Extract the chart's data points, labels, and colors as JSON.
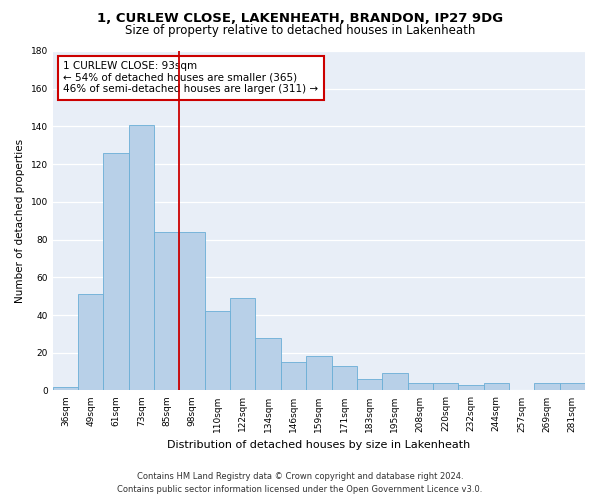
{
  "title1": "1, CURLEW CLOSE, LAKENHEATH, BRANDON, IP27 9DG",
  "title2": "Size of property relative to detached houses in Lakenheath",
  "xlabel": "Distribution of detached houses by size in Lakenheath",
  "ylabel": "Number of detached properties",
  "categories": [
    "36sqm",
    "49sqm",
    "61sqm",
    "73sqm",
    "85sqm",
    "98sqm",
    "110sqm",
    "122sqm",
    "134sqm",
    "146sqm",
    "159sqm",
    "171sqm",
    "183sqm",
    "195sqm",
    "208sqm",
    "220sqm",
    "232sqm",
    "244sqm",
    "257sqm",
    "269sqm",
    "281sqm"
  ],
  "values": [
    2,
    51,
    126,
    141,
    84,
    84,
    42,
    49,
    28,
    15,
    18,
    13,
    6,
    9,
    4,
    4,
    3,
    4,
    0,
    4,
    4
  ],
  "bar_color": "#b8d0e8",
  "bar_edge_color": "#6aaed6",
  "vline_x": 4.5,
  "vline_color": "#cc0000",
  "annotation_text": "1 CURLEW CLOSE: 93sqm\n← 54% of detached houses are smaller (365)\n46% of semi-detached houses are larger (311) →",
  "annotation_box_color": "#ffffff",
  "annotation_box_edge": "#cc0000",
  "ylim": [
    0,
    180
  ],
  "yticks": [
    0,
    20,
    40,
    60,
    80,
    100,
    120,
    140,
    160,
    180
  ],
  "footnote1": "Contains HM Land Registry data © Crown copyright and database right 2024.",
  "footnote2": "Contains public sector information licensed under the Open Government Licence v3.0.",
  "fig_facecolor": "#ffffff",
  "bg_color": "#e8eef7",
  "grid_color": "#ffffff",
  "title_fontsize": 9.5,
  "subtitle_fontsize": 8.5,
  "axis_ylabel_fontsize": 7.5,
  "axis_xlabel_fontsize": 8,
  "tick_fontsize": 6.5,
  "annot_fontsize": 7.5,
  "footnote_fontsize": 6
}
